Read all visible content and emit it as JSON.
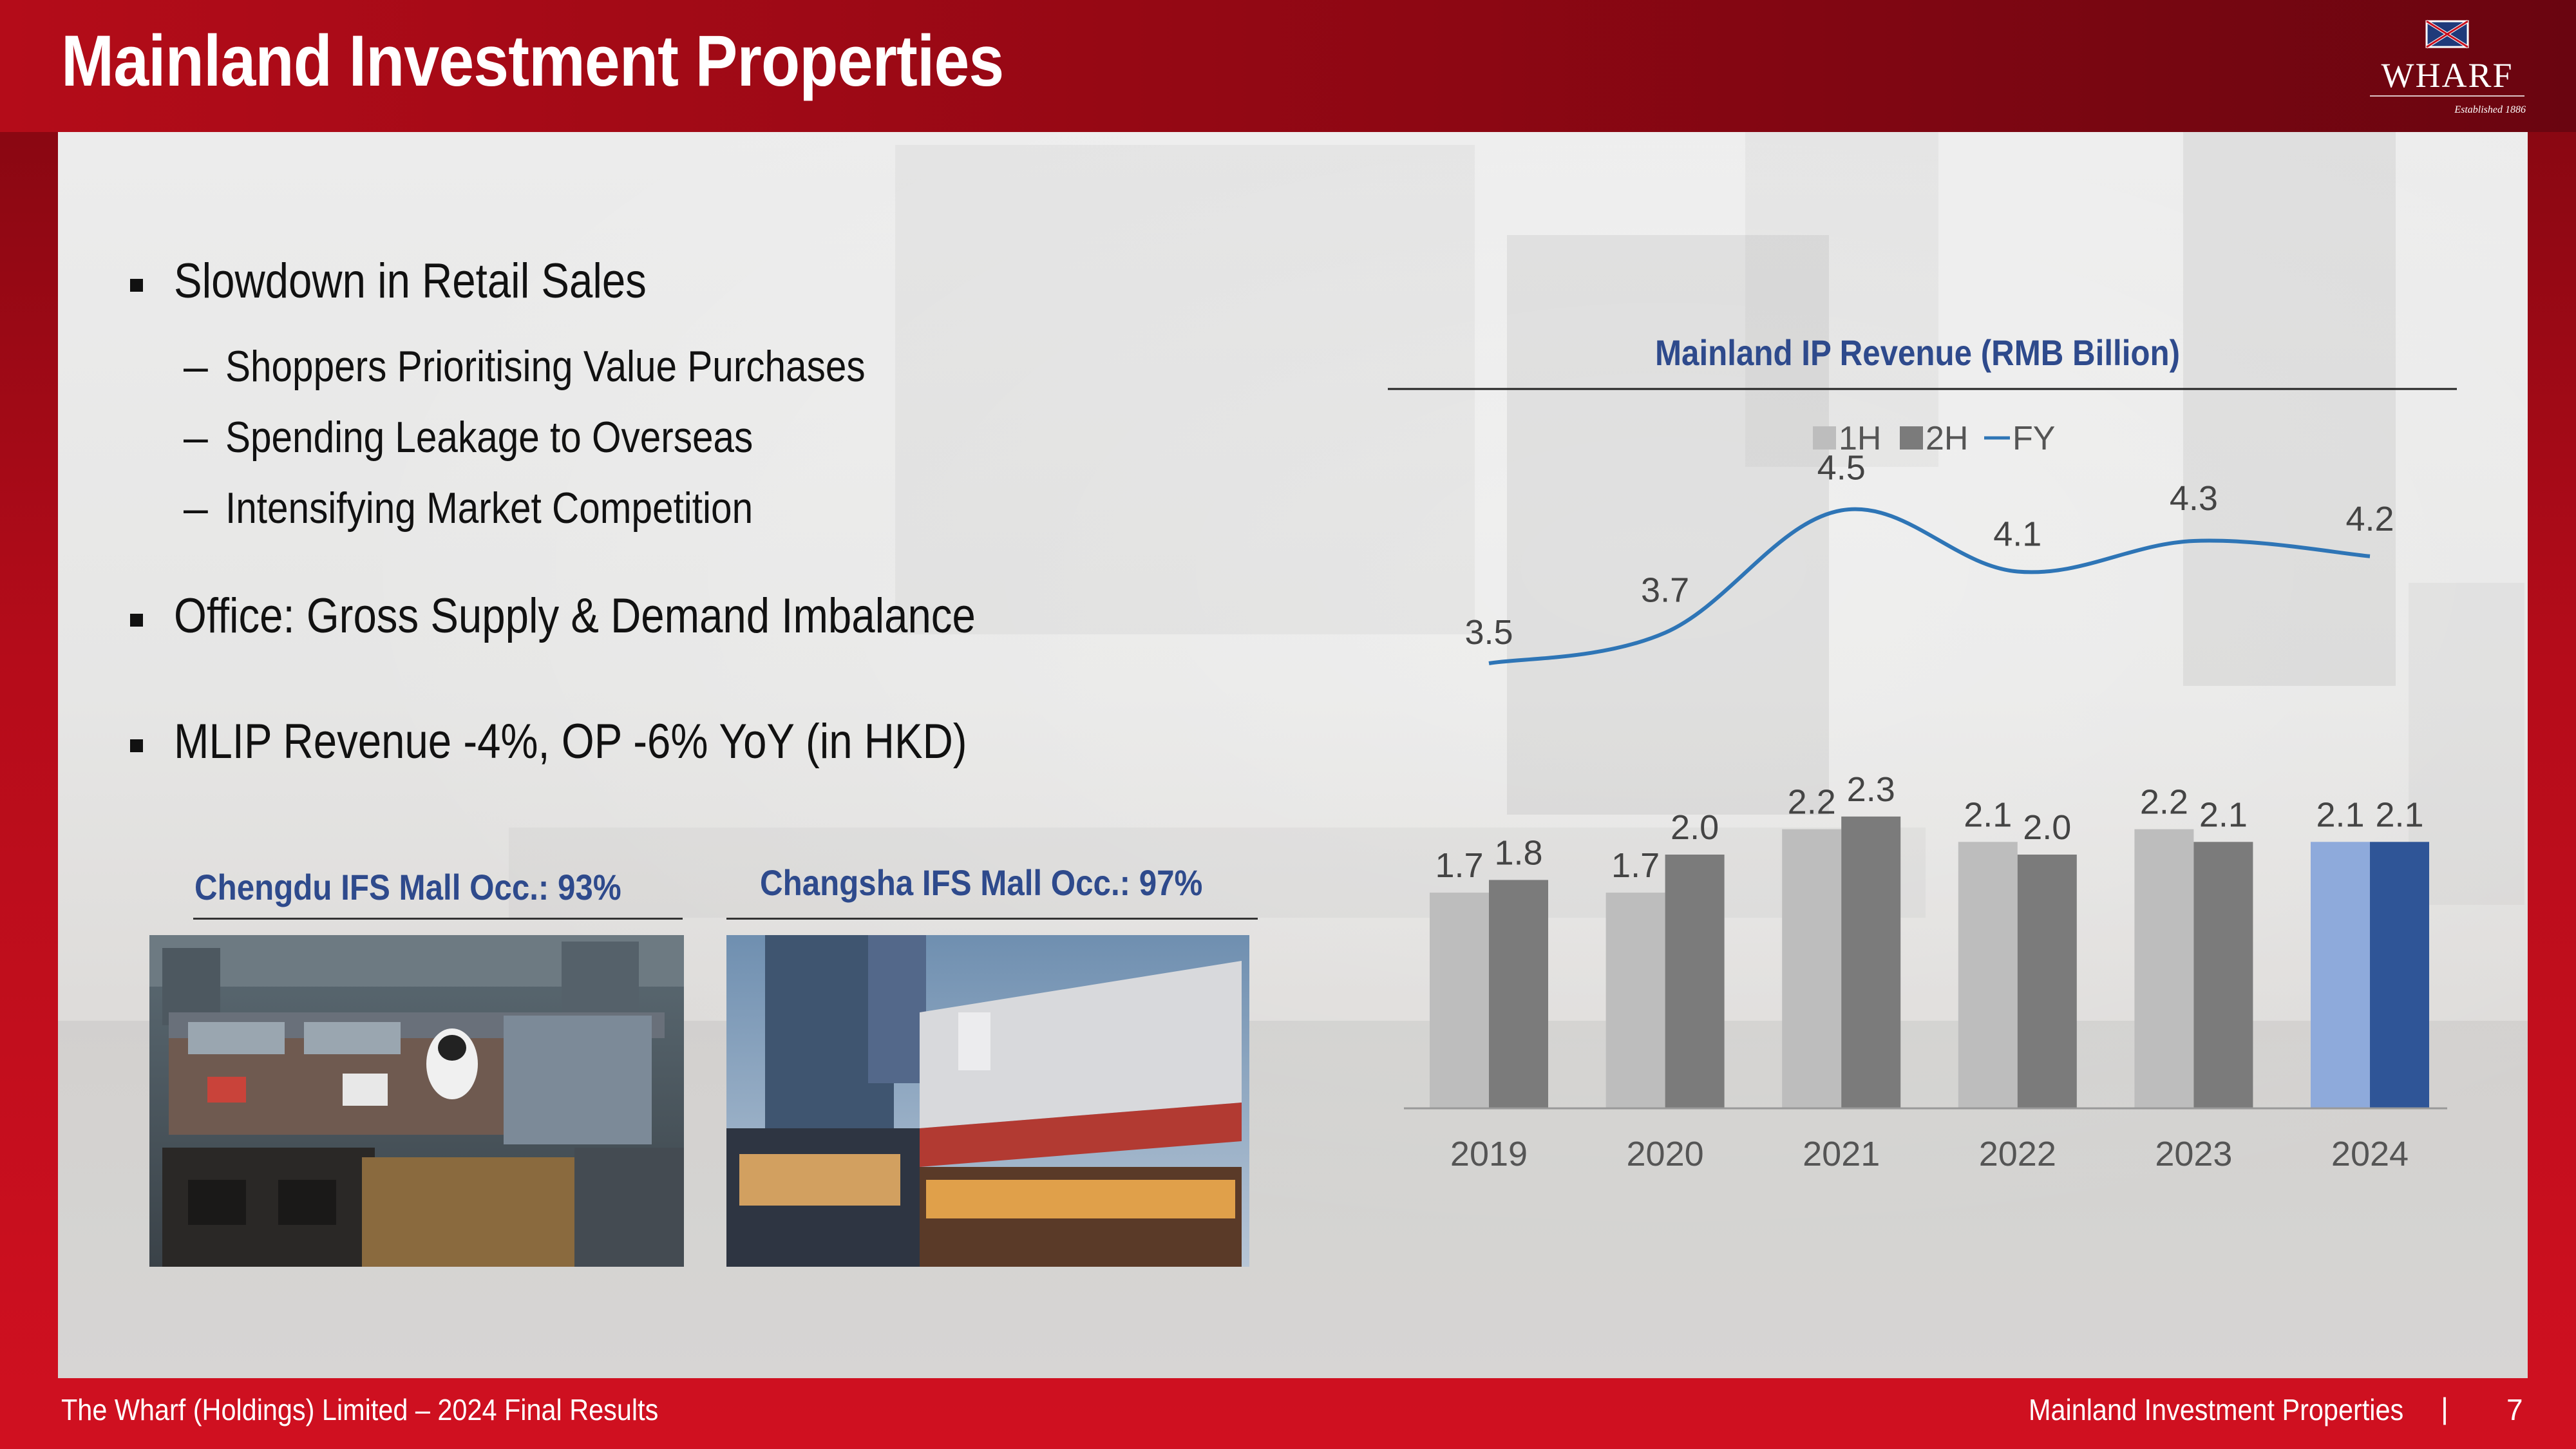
{
  "header": {
    "title": "Mainland Investment Properties"
  },
  "logo": {
    "name": "WHARF",
    "tagline": "Established 1886",
    "icon": "wharf-flag-icon"
  },
  "bullets": [
    {
      "text": "Slowdown in Retail Sales",
      "subitems": [
        "Shoppers Prioritising Value Purchases",
        "Spending Leakage to Overseas",
        "Intensifying Market Competition"
      ]
    },
    {
      "text": "Office: Gross Supply & Demand Imbalance",
      "subitems": []
    },
    {
      "text": "MLIP Revenue -4%, OP -6% YoY (in HKD)",
      "subitems": []
    }
  ],
  "photos": [
    {
      "caption": "Chengdu IFS Mall Occ.: 93%"
    },
    {
      "caption": "Changsha IFS Mall Occ.: 97%"
    }
  ],
  "footer": {
    "left": "The Wharf (Holdings) Limited – 2024 Final Results",
    "right": "Mainland Investment Properties",
    "separator": "|",
    "page": "7"
  },
  "colors": {
    "frame_red": "#c8101e",
    "title_blue": "#2e4a8c",
    "bar_1h": "#bdbdbd",
    "bar_2h": "#7b7b7b",
    "bar_1h_2024": "#8eaadb",
    "bar_2h_2024": "#2f5597",
    "fy_line": "#2e75b6"
  },
  "chart_data": {
    "type": "bar",
    "title": "Mainland IP Revenue (RMB Billion)",
    "categories": [
      "2019",
      "2020",
      "2021",
      "2022",
      "2023",
      "2024"
    ],
    "series": [
      {
        "name": "1H",
        "type": "bar",
        "values": [
          1.7,
          1.7,
          2.2,
          2.1,
          2.2,
          2.1
        ],
        "labels": [
          "1.7",
          "1.7",
          "2.2",
          "2.1",
          "2.2",
          "2.1"
        ]
      },
      {
        "name": "2H",
        "type": "bar",
        "values": [
          1.8,
          2.0,
          2.3,
          2.0,
          2.1,
          2.1
        ],
        "labels": [
          "1.8",
          "2.0",
          "2.3",
          "2.0",
          "2.1",
          "2.1"
        ]
      },
      {
        "name": "FY",
        "type": "line",
        "values": [
          3.5,
          3.7,
          4.5,
          4.1,
          4.3,
          4.2
        ],
        "labels": [
          "3.5",
          "3.7",
          "4.5",
          "4.1",
          "4.3",
          "4.2"
        ]
      }
    ],
    "highlight_category": "2024",
    "legend": {
      "position": "top-center"
    },
    "grid": false
  }
}
